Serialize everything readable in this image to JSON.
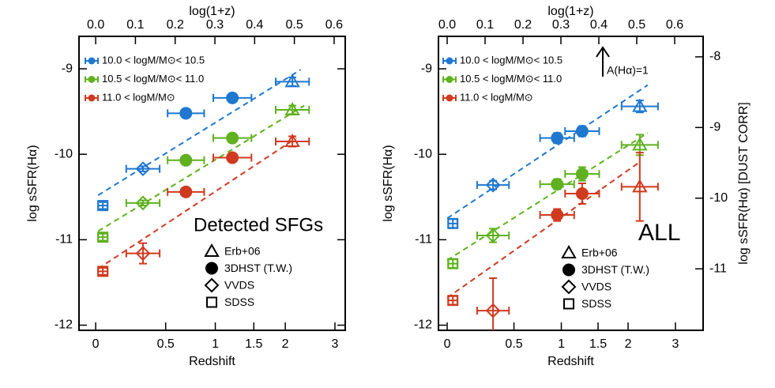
{
  "chart_data": [
    {
      "type": "scatter",
      "annotation": "Detected SFGs",
      "x_label": "Redshift",
      "x2_label": "log(1+z)",
      "y_label": "log sSFR(Hα)",
      "xlim": [
        -0.042,
        0.628
      ],
      "xticks": [
        {
          "value": 0,
          "label": "0.0"
        },
        0.1,
        0.2,
        0.3,
        0.4,
        0.5,
        0.6
      ],
      "redshift_ticks": [
        0,
        0.5,
        1,
        1.5,
        2,
        3
      ],
      "ylim": [
        -12.06,
        -8.62
      ],
      "yticks": [
        -12,
        -11,
        -10,
        -9
      ],
      "survey_legend": [
        {
          "name": "Erb+06",
          "marker": "triangle"
        },
        {
          "name": "3DHST (T.W.)",
          "marker": "circle"
        },
        {
          "name": "VVDS",
          "marker": "diamond"
        },
        {
          "name": "SDSS",
          "marker": "square"
        }
      ],
      "series": [
        {
          "name": "10.0 < logM/M⊙< 10.5",
          "color": "#1f77d0",
          "surveys": [
            "SDSS",
            "VVDS",
            "3DHST (T.W.)",
            "3DHST (T.W.)",
            "Erb+06"
          ],
          "x": [
            0.018,
            0.119,
            0.227,
            0.344,
            0.495
          ],
          "values": [
            -10.6,
            -10.17,
            -9.52,
            -9.34,
            -9.15
          ],
          "xerr": [
            0.012,
            0.042,
            0.046,
            0.048,
            0.042
          ],
          "yerr": [
            0.04,
            0.03,
            0.04,
            0.04,
            0.05
          ],
          "fit_x": [
            0.006,
            0.516
          ],
          "fit_values": [
            -10.48,
            -9.01
          ]
        },
        {
          "name": "10.5 < logM/M⊙< 11.0",
          "color": "#5fb11f",
          "surveys": [
            "SDSS",
            "VVDS",
            "3DHST (T.W.)",
            "3DHST (T.W.)",
            "Erb+06"
          ],
          "x": [
            0.018,
            0.119,
            0.227,
            0.344,
            0.495
          ],
          "values": [
            -10.97,
            -10.57,
            -10.07,
            -9.81,
            -9.48
          ],
          "xerr": [
            0.012,
            0.042,
            0.046,
            0.048,
            0.042
          ],
          "yerr": [
            0.04,
            0.03,
            0.04,
            0.04,
            0.05
          ],
          "fit_x": [
            0.006,
            0.525
          ],
          "fit_values": [
            -10.9,
            -9.43
          ]
        },
        {
          "name": "11.0 < logM/M⊙",
          "color": "#d03a1f",
          "surveys": [
            "SDSS",
            "VVDS",
            "3DHST (T.W.)",
            "3DHST (T.W.)",
            "Erb+06"
          ],
          "x": [
            0.018,
            0.119,
            0.227,
            0.344,
            0.495
          ],
          "values": [
            -11.37,
            -11.16,
            -10.44,
            -10.04,
            -9.85
          ],
          "xerr": [
            0.012,
            0.042,
            0.046,
            0.048,
            0.042
          ],
          "yerr": [
            0.04,
            0.12,
            0.04,
            0.04,
            0.06
          ],
          "fit_x": [
            0.006,
            0.505
          ],
          "fit_values": [
            -11.34,
            -9.81
          ]
        }
      ]
    },
    {
      "type": "scatter",
      "annotation": "ALL",
      "arrow_label": "A(Hα)=1",
      "x_label": "Redshift",
      "x2_label": "log(1+z)",
      "y_label": "log sSFR(Hα)",
      "y2_label": "log sSFR(Hα)  [DUST CORR]",
      "xlim": [
        -0.023,
        0.675
      ],
      "xticks": [
        {
          "value": 0,
          "label": "0.0"
        },
        0.1,
        0.2,
        0.3,
        0.4,
        0.5,
        0.6
      ],
      "redshift_ticks": [
        0,
        0.5,
        1,
        1.5,
        2,
        3
      ],
      "ylim": [
        -12.06,
        -8.62
      ],
      "yticks": [
        -12,
        -11,
        -10,
        -9
      ],
      "y2lim": [
        -11.87,
        -7.71
      ],
      "y2ticks": [
        -11,
        -10,
        -9,
        -8
      ],
      "survey_legend": [
        {
          "name": "Erb+06",
          "marker": "triangle"
        },
        {
          "name": "3DHST (T.W.)",
          "marker": "circle"
        },
        {
          "name": "VVDS",
          "marker": "diamond"
        },
        {
          "name": "SDSS",
          "marker": "square"
        }
      ],
      "series": [
        {
          "name": "10.0 < logM/M⊙< 10.5",
          "color": "#1f77d0",
          "surveys": [
            "SDSS",
            "VVDS",
            "3DHST (T.W.)",
            "3DHST (T.W.)",
            "Erb+06"
          ],
          "x": [
            0.015,
            0.121,
            0.29,
            0.356,
            0.508
          ],
          "values": [
            -10.81,
            -10.36,
            -9.81,
            -9.73,
            -9.44
          ],
          "xerr": [
            0.012,
            0.042,
            0.045,
            0.045,
            0.048
          ],
          "yerr": [
            0.05,
            0.05,
            0.06,
            0.06,
            0.07
          ],
          "fit_x": [
            0,
            0.529
          ],
          "fit_values": [
            -10.75,
            -9.19
          ]
        },
        {
          "name": "10.5 < logM/M⊙< 11.0",
          "color": "#5fb11f",
          "surveys": [
            "SDSS",
            "VVDS",
            "3DHST (T.W.)",
            "3DHST (T.W.)",
            "Erb+06"
          ],
          "x": [
            0.015,
            0.121,
            0.29,
            0.356,
            0.508
          ],
          "values": [
            -11.28,
            -10.95,
            -10.35,
            -10.23,
            -9.89
          ],
          "xerr": [
            0.012,
            0.042,
            0.045,
            0.045,
            0.048
          ],
          "yerr": [
            0.05,
            0.08,
            0.06,
            0.08,
            0.12
          ],
          "fit_x": [
            0,
            0.529
          ],
          "fit_values": [
            -11.24,
            -9.75
          ]
        },
        {
          "name": "11.0 < logM/M⊙",
          "color": "#d03a1f",
          "surveys": [
            "SDSS",
            "VVDS",
            "3DHST (T.W.)",
            "3DHST (T.W.)",
            "Erb+06"
          ],
          "x": [
            0.015,
            0.121,
            0.29,
            0.356,
            0.508
          ],
          "values": [
            -11.71,
            -11.83,
            -10.71,
            -10.46,
            -10.38
          ],
          "xerr": [
            0.012,
            0.042,
            0.045,
            0.045,
            0.048
          ],
          "yerr": [
            0.05,
            0.38,
            0.07,
            0.12,
            0.4
          ],
          "fit_x": [
            0,
            0.508
          ],
          "fit_values": [
            -11.68,
            -10.09
          ]
        }
      ]
    }
  ]
}
